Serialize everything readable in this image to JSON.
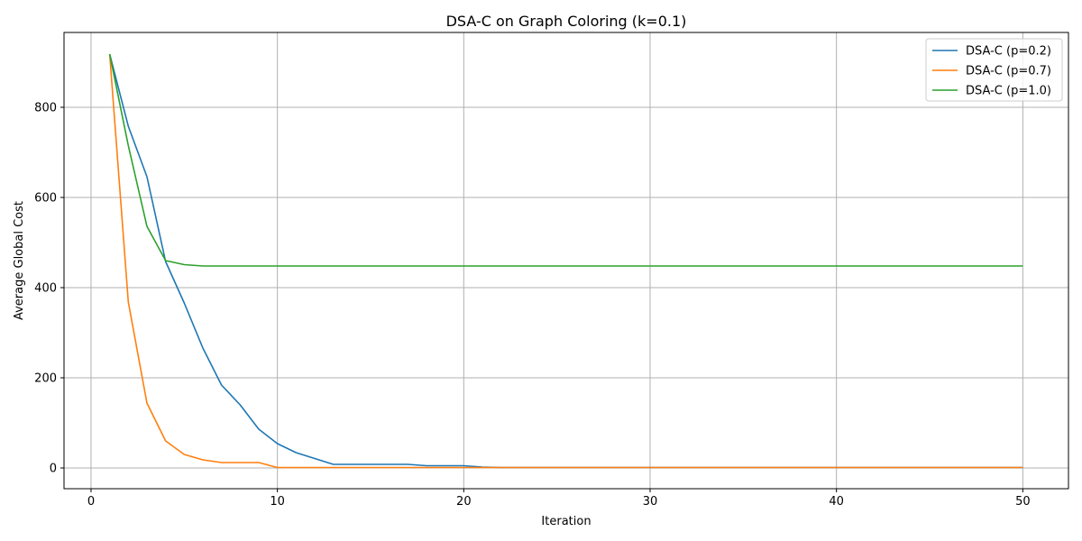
{
  "chart_data": {
    "type": "line",
    "title": "DSA-C on Graph Coloring (k=0.1)",
    "xlabel": "Iteration",
    "ylabel": "Average Global Cost",
    "xlim": [
      -1.45,
      52.45
    ],
    "ylim": [
      -46,
      966
    ],
    "xticks": [
      0,
      10,
      20,
      30,
      40,
      50
    ],
    "yticks": [
      0,
      200,
      400,
      600,
      800
    ],
    "grid": true,
    "legend_position": "top-right",
    "x": [
      1,
      2,
      3,
      4,
      5,
      6,
      7,
      8,
      9,
      10,
      11,
      12,
      13,
      14,
      15,
      16,
      17,
      18,
      19,
      20,
      21,
      22,
      23,
      24,
      25,
      26,
      27,
      28,
      29,
      30,
      31,
      32,
      33,
      34,
      35,
      36,
      37,
      38,
      39,
      40,
      41,
      42,
      43,
      44,
      45,
      46,
      47,
      48,
      49,
      50
    ],
    "series": [
      {
        "name": "DSA-C (p=0.2)",
        "color": "#1f77b4",
        "values": [
          918,
          758,
          646,
          458,
          366,
          266,
          184,
          140,
          86,
          54,
          34,
          21,
          8,
          8,
          8,
          8,
          8,
          5,
          5,
          5,
          2,
          1,
          1,
          1,
          1,
          1,
          1,
          1,
          1,
          1,
          1,
          1,
          1,
          1,
          1,
          1,
          1,
          1,
          1,
          1,
          1,
          1,
          1,
          1,
          1,
          1,
          1,
          1,
          1,
          1
        ]
      },
      {
        "name": "DSA-C (p=0.7)",
        "color": "#ff7f0e",
        "values": [
          918,
          368,
          144,
          60,
          30,
          18,
          12,
          12,
          12,
          1,
          1,
          1,
          1,
          1,
          1,
          1,
          1,
          1,
          1,
          1,
          1,
          1,
          1,
          1,
          1,
          1,
          1,
          1,
          1,
          1,
          1,
          1,
          1,
          1,
          1,
          1,
          1,
          1,
          1,
          1,
          1,
          1,
          1,
          1,
          1,
          1,
          1,
          1,
          1,
          1
        ]
      },
      {
        "name": "DSA-C (p=1.0)",
        "color": "#2ca02c",
        "values": [
          918,
          715,
          536,
          460,
          451,
          448,
          448,
          448,
          448,
          448,
          448,
          448,
          448,
          448,
          448,
          448,
          448,
          448,
          448,
          448,
          448,
          448,
          448,
          448,
          448,
          448,
          448,
          448,
          448,
          448,
          448,
          448,
          448,
          448,
          448,
          448,
          448,
          448,
          448,
          448,
          448,
          448,
          448,
          448,
          448,
          448,
          448,
          448,
          448,
          448
        ]
      }
    ]
  }
}
